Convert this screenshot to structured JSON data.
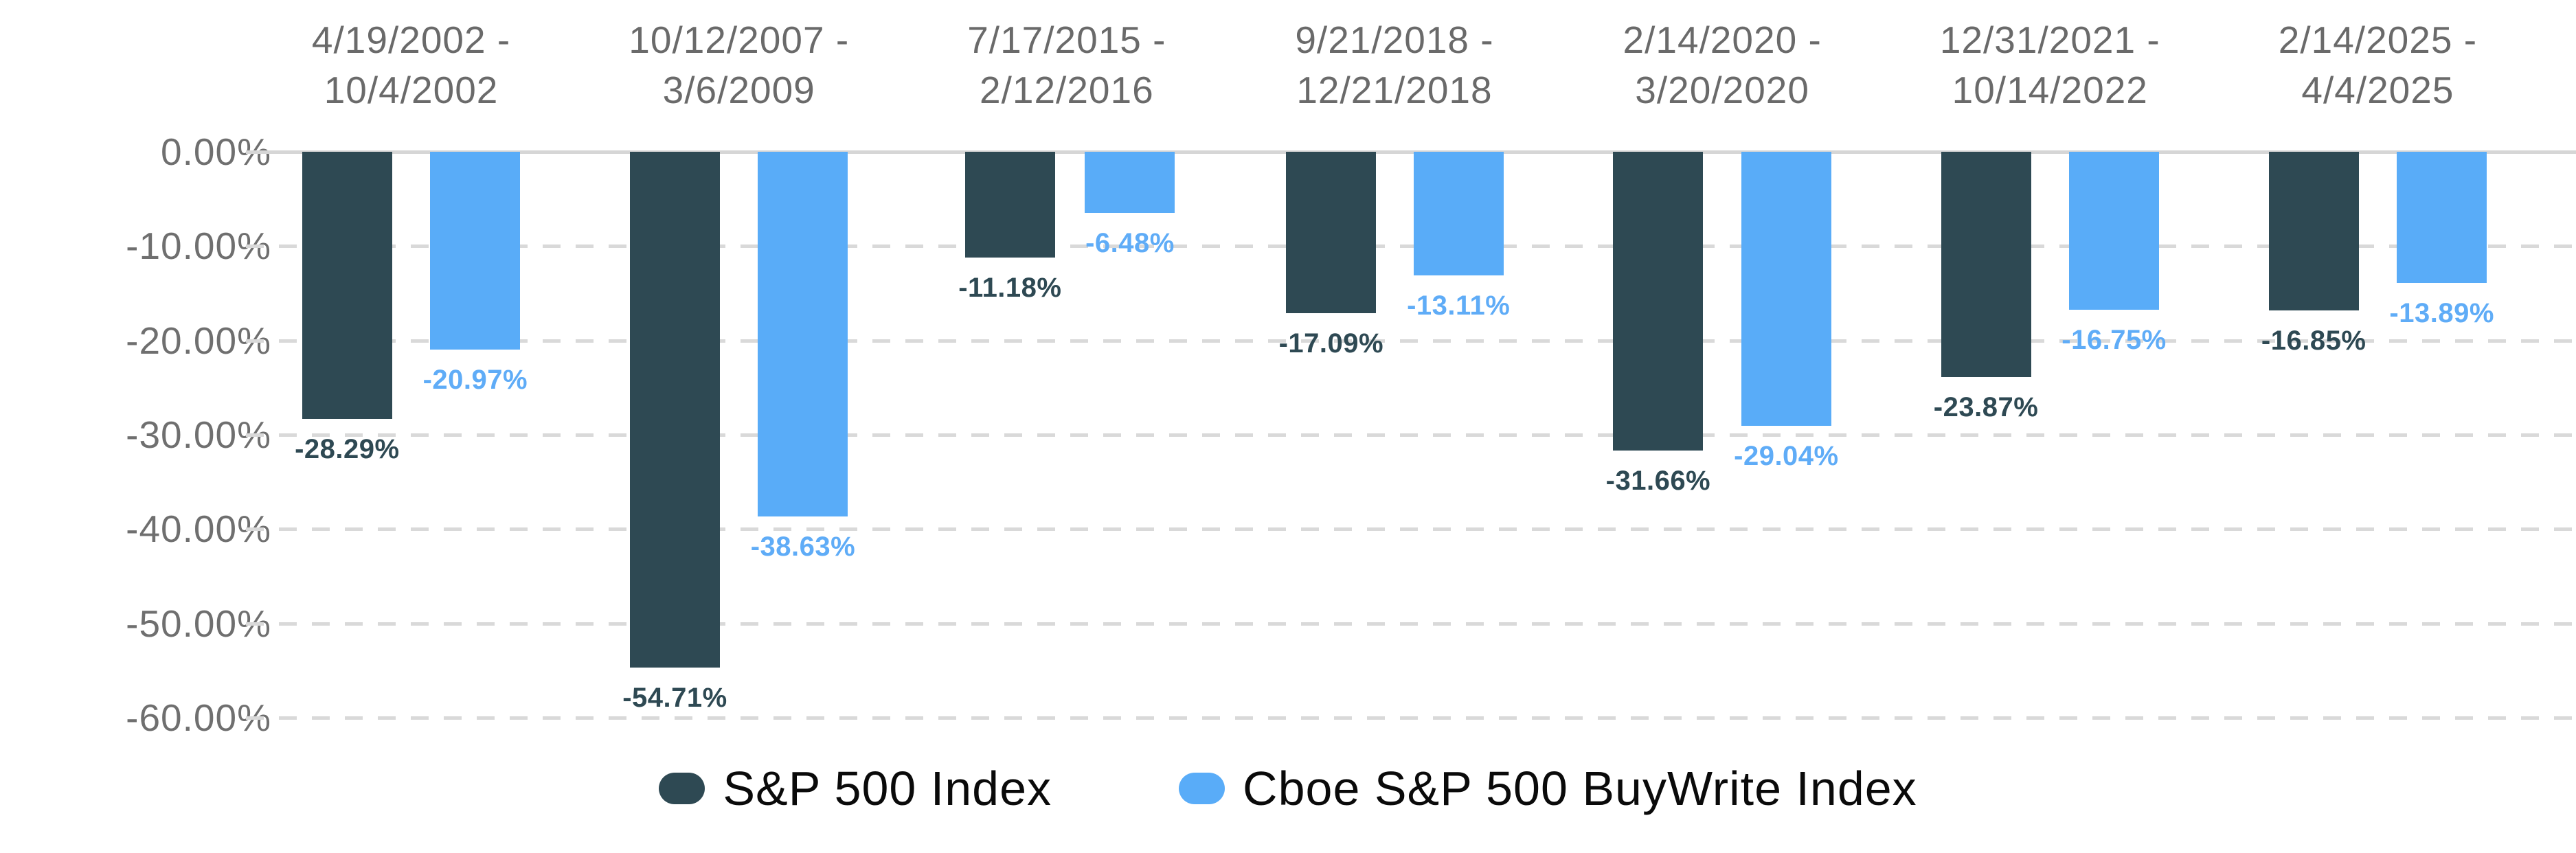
{
  "chart_data": {
    "type": "bar",
    "title": "",
    "xlabel": "",
    "ylabel": "",
    "grid": {
      "horizontal": "dashed",
      "zero_line": "solid",
      "vertical": false
    },
    "legend_position": "bottom",
    "categories": [
      {
        "label": "4/19/2002 - 10/4/2002",
        "lines": [
          "4/19/2002 -",
          "10/4/2002"
        ]
      },
      {
        "label": "10/12/2007 - 3/6/2009",
        "lines": [
          "10/12/2007 -",
          "3/6/2009"
        ]
      },
      {
        "label": "7/17/2015 - 2/12/2016",
        "lines": [
          "7/17/2015 -",
          "2/12/2016"
        ]
      },
      {
        "label": "9/21/2018 - 12/21/2018",
        "lines": [
          "9/21/2018 -",
          "12/21/2018"
        ]
      },
      {
        "label": "2/14/2020 - 3/20/2020",
        "lines": [
          "2/14/2020 -",
          "3/20/2020"
        ]
      },
      {
        "label": "12/31/2021 - 10/14/2022",
        "lines": [
          "12/31/2021 -",
          "10/14/2022"
        ]
      },
      {
        "label": "2/14/2025 - 4/4/2025",
        "lines": [
          "2/14/2025 -",
          "4/4/2025"
        ]
      }
    ],
    "series": [
      {
        "name": "S&P 500 Index",
        "color": "#2E4953",
        "label_color": "#2E4953",
        "values": [
          -28.29,
          -54.71,
          -11.18,
          -17.09,
          -31.66,
          -23.87,
          -16.85
        ],
        "labels": [
          "-28.29%",
          "-54.71%",
          "-11.18%",
          "-17.09%",
          "-31.66%",
          "-23.87%",
          "-16.85%"
        ]
      },
      {
        "name": "Cboe S&P 500 BuyWrite Index",
        "color": "#59ACF8",
        "label_color": "#5FACF7",
        "values": [
          -20.97,
          -38.63,
          -6.48,
          -13.11,
          -29.04,
          -16.75,
          -13.89
        ],
        "labels": [
          "-20.97%",
          "-38.63%",
          "-6.48%",
          "-13.11%",
          "-29.04%",
          "-16.75%",
          "-13.89%"
        ]
      }
    ],
    "y_axis": {
      "min": -60,
      "max": 0,
      "tick_step": 10,
      "ticks": [
        {
          "label": "0.00%",
          "value": 0
        },
        {
          "label": "-10.00%",
          "value": -10
        },
        {
          "label": "-20.00%",
          "value": -20
        },
        {
          "label": "-30.00%",
          "value": -30
        },
        {
          "label": "-40.00%",
          "value": -40
        },
        {
          "label": "-50.00%",
          "value": -50
        },
        {
          "label": "-60.00%",
          "value": -60
        }
      ]
    },
    "colors": {
      "grid": "#D9D9D9",
      "zero_line": "#D6D6D6",
      "axis_text": "#6F6F6F",
      "category_text": "#6A6A6A",
      "legend_text": "#0A0A0A",
      "background": "#FFFFFF"
    }
  }
}
